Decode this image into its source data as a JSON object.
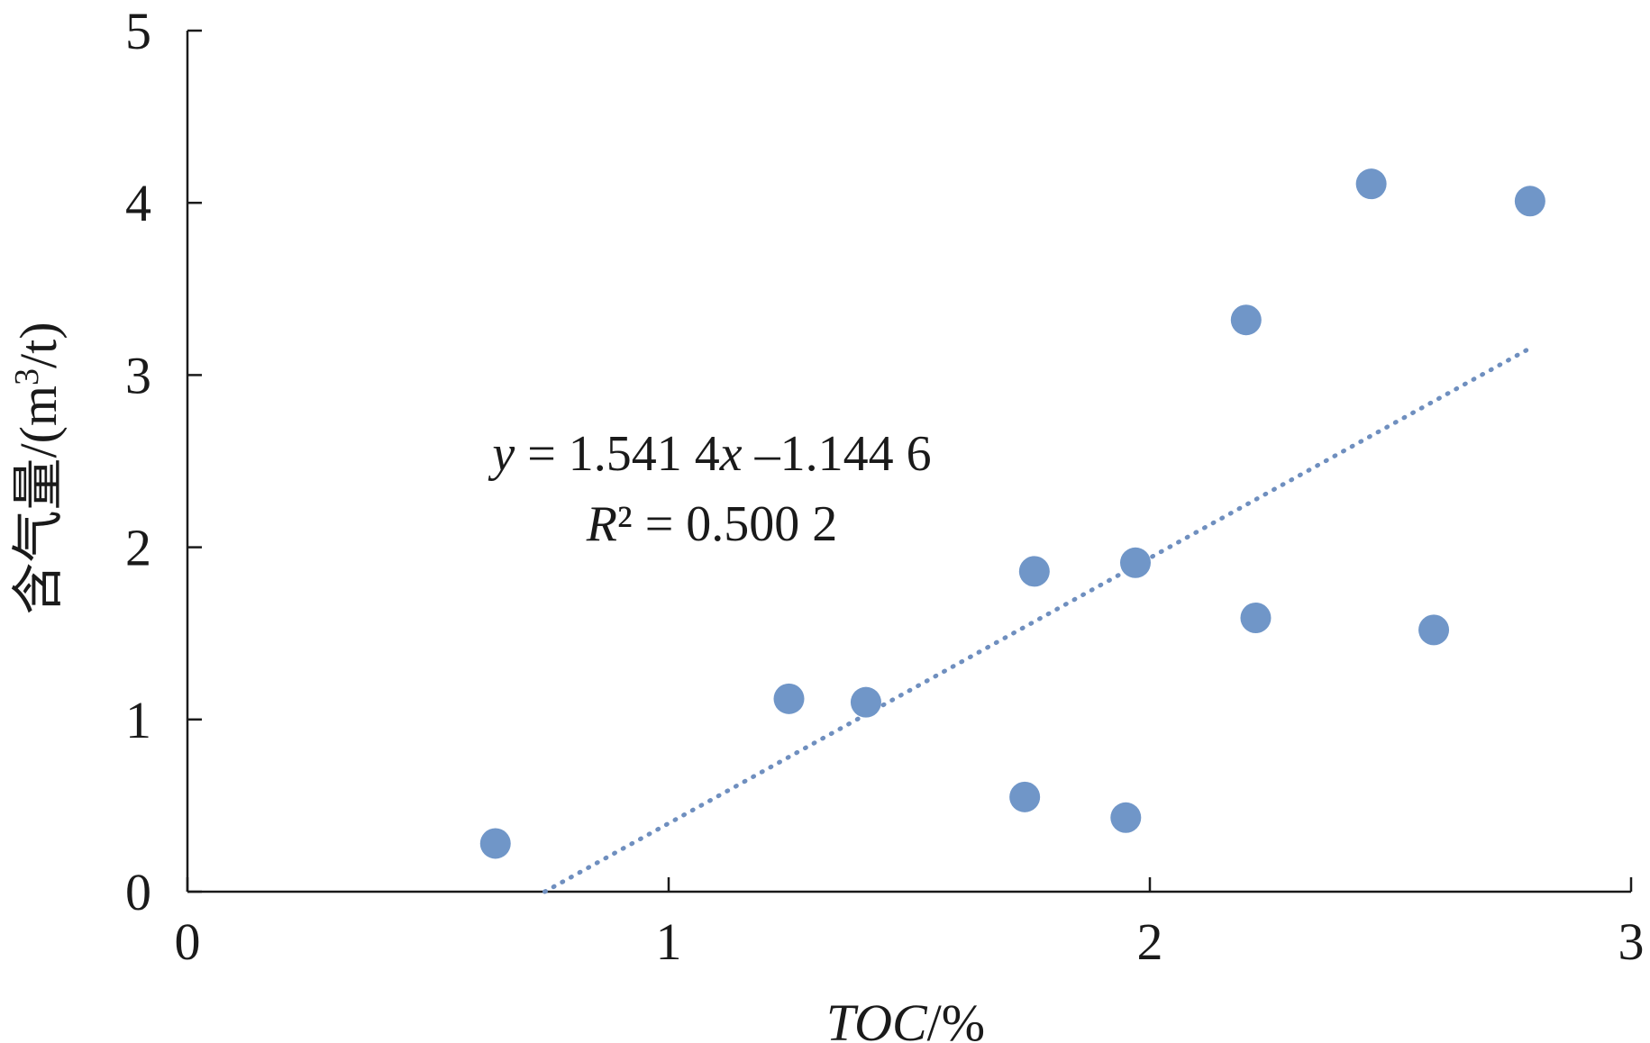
{
  "chart_data": {
    "type": "scatter",
    "xlabel": "TOC/%",
    "ylabel": "含气量/(m³/t)",
    "xlim": [
      0,
      3
    ],
    "ylim": [
      0,
      5
    ],
    "xticks": [
      "0",
      "1",
      "2",
      "3"
    ],
    "yticks": [
      "0",
      "1",
      "2",
      "3",
      "4",
      "5"
    ],
    "grid": false,
    "legend": "none",
    "marker_color": "#7096c8",
    "trend_color": "#6f8fbf",
    "x": [
      0.64,
      1.25,
      1.41,
      1.74,
      1.76,
      1.95,
      1.97,
      2.2,
      2.22,
      2.46,
      2.59,
      2.79
    ],
    "y": [
      0.28,
      1.12,
      1.1,
      0.55,
      1.86,
      0.43,
      1.91,
      3.32,
      1.59,
      4.11,
      1.52,
      4.01
    ],
    "trendline": {
      "slope": 1.5414,
      "intercept": -1.1446,
      "x_range": [
        0.7426,
        2.79
      ]
    },
    "annotations": {
      "equation": {
        "y": "y",
        "mid": " = 1.541 4",
        "x": "x",
        "tail": " –1.144 6"
      },
      "r2": {
        "r": "R",
        "tail": "² = 0.500 2"
      }
    },
    "ylabel_parts": {
      "main": "含气量/(m",
      "sup": "3",
      "end": "/t)"
    },
    "xlabel_parts": {
      "main": "TOC",
      "end": "/%"
    }
  }
}
